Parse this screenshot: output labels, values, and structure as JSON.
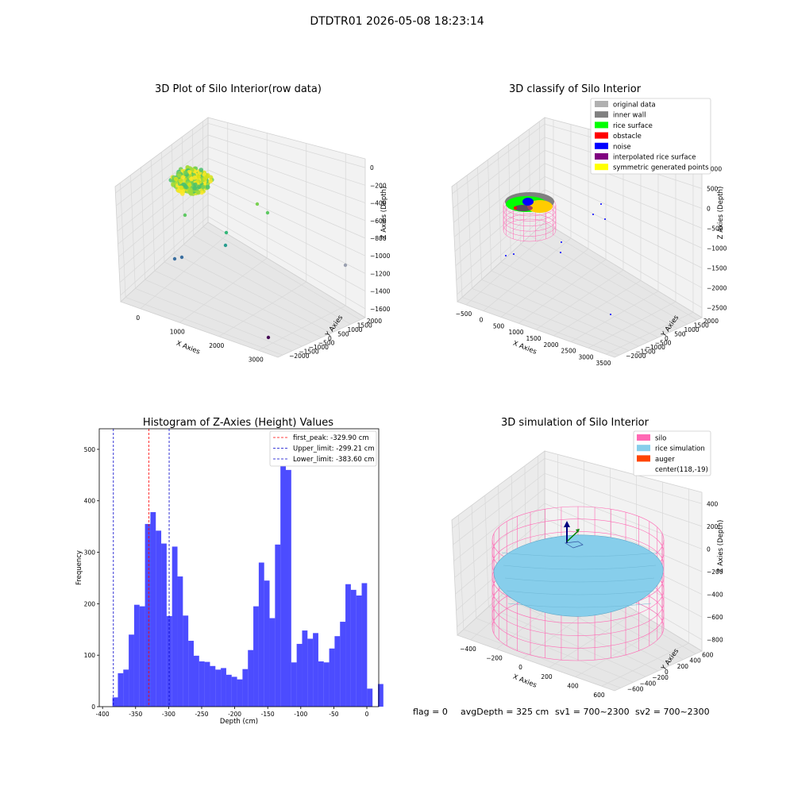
{
  "suptitle": "DTDTR01 2026-05-08 18:23:14",
  "status_line": {
    "flag": "flag = 0",
    "avg_depth": "avgDepth = 325 cm",
    "sv1": "sv1 = 700~2300",
    "sv2": "sv2 = 700~2300"
  },
  "chart_data": [
    {
      "type": "scatter",
      "projection": "3d",
      "title": "3D Plot of Silo Interior(row data)",
      "xlabel": "X Axies",
      "ylabel": "Y Axies",
      "zlabel": "Z Axies (Depth)",
      "x_ticks": [
        "0",
        "1000",
        "2000",
        "3000"
      ],
      "y_ticks": [
        "2000",
        "1500",
        "1000",
        "500",
        "0",
        "−500",
        "−1000",
        "−1500",
        "−2000"
      ],
      "z_ticks": [
        "0",
        "−200",
        "−400",
        "−600",
        "−800",
        "−1000",
        "−1200",
        "−1400",
        "−1600"
      ],
      "colormap": "viridis",
      "grid": true
    },
    {
      "type": "scatter",
      "projection": "3d",
      "title": "3D classify of Silo Interior",
      "xlabel": "X Axies",
      "ylabel": "Y Axies",
      "zlabel": "Z Axies (Depth)",
      "x_ticks": [
        "−500",
        "0",
        "500",
        "1000",
        "1500",
        "2000",
        "2500",
        "3000",
        "3500"
      ],
      "y_ticks": [
        "2000",
        "1500",
        "1000",
        "500",
        "0",
        "−500",
        "−1000",
        "−1500",
        "−2000"
      ],
      "z_ticks": [
        "1000",
        "500",
        "0",
        "−500",
        "−1000",
        "−1500",
        "−2000",
        "−2500"
      ],
      "legend_position": "top-right",
      "legend": [
        {
          "label": "original data",
          "color": "#b0b0b0"
        },
        {
          "label": "inner wall",
          "color": "#808080"
        },
        {
          "label": "rice surface",
          "color": "#00ff00"
        },
        {
          "label": "obstacle",
          "color": "#ff0000"
        },
        {
          "label": "noise",
          "color": "#0000ff"
        },
        {
          "label": "interpolated rice surface",
          "color": "#800080"
        },
        {
          "label": "symmetric generated points",
          "color": "#ffff00"
        }
      ],
      "grid": true
    },
    {
      "type": "bar",
      "title": "Histogram of Z-Axies (Height) Values",
      "xlabel": "Depth (cm)",
      "ylabel": "Frequency",
      "xlim": [
        -405,
        18
      ],
      "ylim": [
        0,
        540
      ],
      "x_ticks": [
        -400,
        -350,
        -300,
        -250,
        -200,
        -150,
        -100,
        -50,
        0
      ],
      "y_ticks": [
        0,
        100,
        200,
        300,
        400,
        500
      ],
      "bin_start": -385,
      "bin_width": 8.2,
      "counts": [
        18,
        65,
        72,
        140,
        198,
        195,
        355,
        378,
        342,
        317,
        176,
        311,
        253,
        177,
        128,
        99,
        88,
        87,
        79,
        72,
        75,
        62,
        58,
        53,
        73,
        110,
        195,
        280,
        245,
        172,
        315,
        513,
        460,
        86,
        122,
        148,
        132,
        143,
        88,
        86,
        113,
        137,
        165,
        238,
        227,
        216,
        240,
        35,
        0,
        44
      ],
      "bar_color": "#0000ff",
      "reference_lines": [
        {
          "label": "first_peak: -329.90 cm",
          "x": -329.9,
          "color": "#ff0000"
        },
        {
          "label": "Upper_limit: -299.21 cm",
          "x": -299.21,
          "color": "#0000cc"
        },
        {
          "label": "Lower_limit: -383.60 cm",
          "x": -383.6,
          "color": "#0000cc"
        }
      ],
      "legend_position": "top-right",
      "grid": false
    },
    {
      "type": "surface",
      "projection": "3d",
      "title": "3D simulation of Silo Interior",
      "xlabel": "X Axies",
      "ylabel": "Y Axies",
      "zlabel": "Z Axies (Depth)",
      "x_ticks": [
        "−400",
        "−200",
        "0",
        "200",
        "400",
        "600"
      ],
      "y_ticks": [
        "600",
        "400",
        "200",
        "0",
        "−200",
        "−400",
        "−600"
      ],
      "z_ticks": [
        "400",
        "200",
        "0",
        "−200",
        "−400",
        "−600",
        "−800"
      ],
      "legend_position": "top-right",
      "legend": [
        {
          "label": "silo",
          "color": "#ff69b4"
        },
        {
          "label": "rice simulation",
          "color": "#87ceeb"
        },
        {
          "label": "auger",
          "color": "#ff4500"
        },
        {
          "label": "center(118,-19)",
          "color": ""
        }
      ],
      "grid": true
    }
  ]
}
